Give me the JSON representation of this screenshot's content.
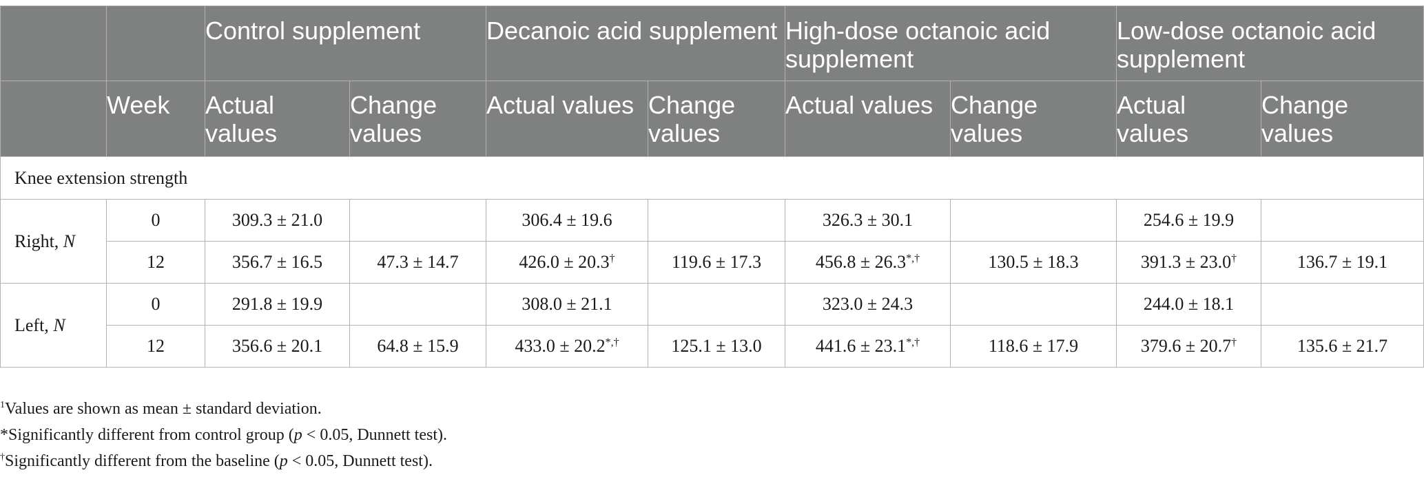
{
  "table": {
    "group_headers": [
      "",
      "",
      "Control supplement",
      "Decanoic acid supplement",
      "High-dose octanoic acid supplement",
      "Low-dose octanoic acid supplement"
    ],
    "sub_headers": [
      "",
      "Week",
      "Actual values",
      "Change values",
      "Actual values",
      "Change values",
      "Actual values",
      "Change values",
      "Actual values",
      "Change values"
    ],
    "section_title": "Knee extension strength",
    "groups": [
      {
        "label": "Right,",
        "unit": "N",
        "rows": [
          {
            "week": "0",
            "cells": [
              {
                "v": "309.3 ± 21.0",
                "sup": ""
              },
              {
                "v": "",
                "sup": ""
              },
              {
                "v": "306.4 ± 19.6",
                "sup": ""
              },
              {
                "v": "",
                "sup": ""
              },
              {
                "v": "326.3 ± 30.1",
                "sup": ""
              },
              {
                "v": "",
                "sup": ""
              },
              {
                "v": "254.6 ± 19.9",
                "sup": ""
              },
              {
                "v": "",
                "sup": ""
              }
            ]
          },
          {
            "week": "12",
            "cells": [
              {
                "v": "356.7 ± 16.5",
                "sup": ""
              },
              {
                "v": "47.3 ± 14.7",
                "sup": ""
              },
              {
                "v": "426.0 ± 20.3",
                "sup": "†"
              },
              {
                "v": "119.6 ± 17.3",
                "sup": ""
              },
              {
                "v": "456.8 ± 26.3",
                "sup": "*,†"
              },
              {
                "v": "130.5 ± 18.3",
                "sup": ""
              },
              {
                "v": "391.3 ± 23.0",
                "sup": "†"
              },
              {
                "v": "136.7 ± 19.1",
                "sup": ""
              }
            ]
          }
        ]
      },
      {
        "label": "Left,",
        "unit": "N",
        "rows": [
          {
            "week": "0",
            "cells": [
              {
                "v": "291.8 ± 19.9",
                "sup": ""
              },
              {
                "v": "",
                "sup": ""
              },
              {
                "v": "308.0 ± 21.1",
                "sup": ""
              },
              {
                "v": "",
                "sup": ""
              },
              {
                "v": "323.0 ± 24.3",
                "sup": ""
              },
              {
                "v": "",
                "sup": ""
              },
              {
                "v": "244.0 ± 18.1",
                "sup": ""
              },
              {
                "v": "",
                "sup": ""
              }
            ]
          },
          {
            "week": "12",
            "cells": [
              {
                "v": "356.6 ± 20.1",
                "sup": ""
              },
              {
                "v": "64.8 ± 15.9",
                "sup": ""
              },
              {
                "v": "433.0 ± 20.2",
                "sup": "*,†"
              },
              {
                "v": "125.1 ± 13.0",
                "sup": ""
              },
              {
                "v": "441.6 ± 23.1",
                "sup": "*,†"
              },
              {
                "v": "118.6 ± 17.9",
                "sup": ""
              },
              {
                "v": "379.6 ± 20.7",
                "sup": "†"
              },
              {
                "v": "135.6 ± 21.7",
                "sup": ""
              }
            ]
          }
        ]
      }
    ]
  },
  "footnotes": {
    "note1_mark": "1",
    "note1_text": "Values are shown as mean ± standard deviation.",
    "note2_mark": "*",
    "note2_pre": "Significantly different from control group (",
    "note2_p": "p",
    "note2_post": " < 0.05, Dunnett test).",
    "note3_mark": "†",
    "note3_pre": "Significantly different from the baseline (",
    "note3_p": "p",
    "note3_post": " < 0.05, Dunnett test)."
  }
}
